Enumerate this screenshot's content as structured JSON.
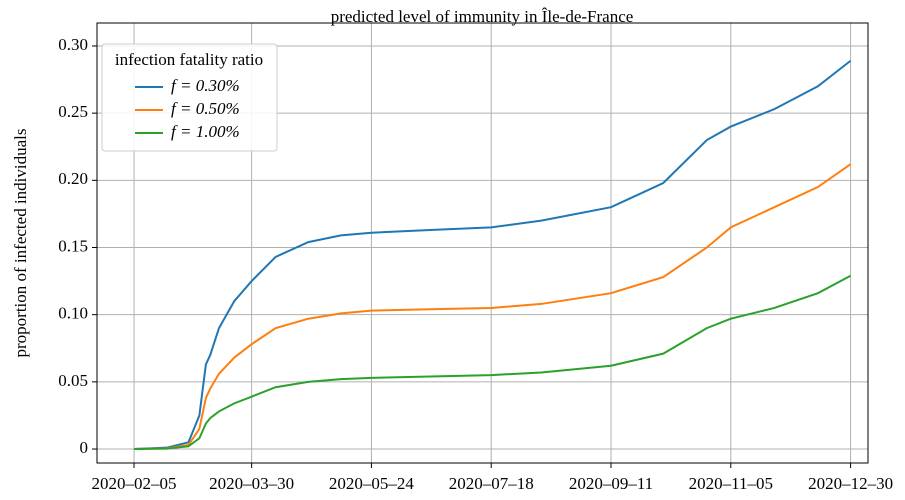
{
  "chart_data": {
    "type": "line",
    "title": "predicted level of immunity in Île-de-France",
    "y_label": "proportion of infected individuals",
    "legend_title": "infection fatality ratio",
    "legend_position": "upper left",
    "grid": true,
    "x": [
      "2020-02-05",
      "2020-02-20",
      "2020-03-01",
      "2020-03-06",
      "2020-03-09",
      "2020-03-11",
      "2020-03-15",
      "2020-03-22",
      "2020-03-30",
      "2020-04-10",
      "2020-04-25",
      "2020-05-10",
      "2020-05-24",
      "2020-06-20",
      "2020-07-18",
      "2020-08-10",
      "2020-09-11",
      "2020-10-05",
      "2020-10-25",
      "2020-11-05",
      "2020-11-25",
      "2020-12-15",
      "2020-12-30"
    ],
    "series": [
      {
        "name": "f = 0.30%",
        "color": "#1f77b4",
        "values": [
          0,
          0.001,
          0.005,
          0.025,
          0.063,
          0.07,
          0.09,
          0.11,
          0.125,
          0.143,
          0.154,
          0.159,
          0.161,
          0.163,
          0.165,
          0.17,
          0.18,
          0.198,
          0.23,
          0.24,
          0.253,
          0.27,
          0.289
        ]
      },
      {
        "name": "f = 0.50%",
        "color": "#ff7f0e",
        "values": [
          0,
          0.0005,
          0.003,
          0.015,
          0.038,
          0.045,
          0.056,
          0.068,
          0.078,
          0.09,
          0.097,
          0.101,
          0.103,
          0.104,
          0.105,
          0.108,
          0.116,
          0.128,
          0.15,
          0.165,
          0.18,
          0.195,
          0.212
        ]
      },
      {
        "name": "f = 1.00%",
        "color": "#2ca02c",
        "values": [
          0,
          0.0003,
          0.002,
          0.008,
          0.019,
          0.023,
          0.028,
          0.034,
          0.039,
          0.046,
          0.05,
          0.052,
          0.053,
          0.054,
          0.055,
          0.057,
          0.062,
          0.071,
          0.09,
          0.097,
          0.105,
          0.116,
          0.129
        ]
      }
    ],
    "xlim": [
      "2020-01-19",
      "2021-01-07"
    ],
    "xticks": [
      {
        "value": "2020-02-05",
        "label": "2020–02–05"
      },
      {
        "value": "2020-03-30",
        "label": "2020–03–30"
      },
      {
        "value": "2020-05-24",
        "label": "2020–05–24"
      },
      {
        "value": "2020-07-18",
        "label": "2020–07–18"
      },
      {
        "value": "2020-09-11",
        "label": "2020–09–11"
      },
      {
        "value": "2020-11-05",
        "label": "2020–11–05"
      },
      {
        "value": "2020-12-30",
        "label": "2020–12–30"
      }
    ],
    "ylim": [
      -0.0104,
      0.3171
    ],
    "yticks": [
      0,
      0.05,
      {
        "value": 0.1,
        "label": "0.10"
      },
      0.15,
      {
        "value": 0.2,
        "label": "0.20"
      },
      0.25,
      {
        "value": 0.3,
        "label": "0.30"
      }
    ]
  }
}
